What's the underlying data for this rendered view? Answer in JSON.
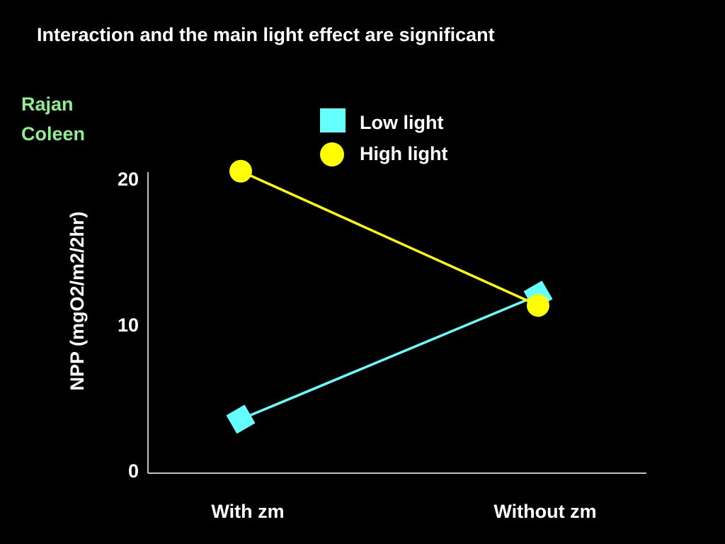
{
  "slide": {
    "title": "Interaction and the main light effect are significant",
    "authors": [
      "Rajan",
      "Coleen"
    ],
    "author_color": "#90ee90"
  },
  "chart_data": {
    "type": "line",
    "categories": [
      "With zm",
      "Without zm"
    ],
    "series": [
      {
        "name": "Low light",
        "values": [
          3.5,
          12.0
        ],
        "color": "#66ffff",
        "marker": "square"
      },
      {
        "name": "High light",
        "values": [
          20.5,
          11.3
        ],
        "color": "#ffff00",
        "marker": "circle"
      }
    ],
    "ylabel": "NPP (mgO2/m2/2hr)",
    "xlabel": "",
    "yticks": [
      0,
      10,
      20
    ],
    "ylim": [
      0,
      20
    ],
    "legend_position": "top-right",
    "grid": false
  }
}
